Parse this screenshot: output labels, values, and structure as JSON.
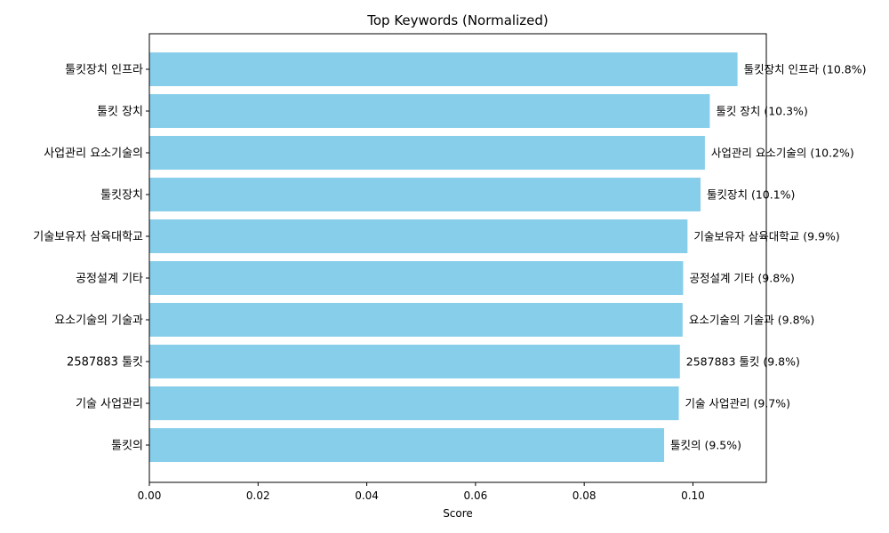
{
  "chart_data": {
    "type": "bar",
    "orientation": "horizontal",
    "title": "Top Keywords (Normalized)",
    "xlabel": "Score",
    "ylabel": "",
    "xlim": [
      0,
      0.1135
    ],
    "xticks": [
      0.0,
      0.02,
      0.04,
      0.06,
      0.08,
      0.1
    ],
    "xtick_labels": [
      "0.00",
      "0.02",
      "0.04",
      "0.06",
      "0.08",
      "0.10"
    ],
    "bar_color": "#87ceeb",
    "grid": false,
    "categories": [
      "툴킷장치 인프라",
      "툴킷 장치",
      "사업관리 요소기술의",
      "툴킷장치",
      "기술보유자 삼육대학교",
      "공정설계 기타",
      "요소기술의 기술과",
      "2587883 툴킷",
      "기술 사업관리",
      "툴킷의"
    ],
    "values": [
      0.1082,
      0.1031,
      0.1022,
      0.1014,
      0.099,
      0.0982,
      0.0981,
      0.0976,
      0.0974,
      0.0947
    ],
    "data_labels": [
      "툴킷장치 인프라 (10.8%)",
      "툴킷 장치 (10.3%)",
      "사업관리 요소기술의 (10.2%)",
      "툴킷장치 (10.1%)",
      "기술보유자 삼육대학교 (9.9%)",
      "공정설계 기타 (9.8%)",
      "요소기술의 기술과 (9.8%)",
      "2587883 툴킷 (9.8%)",
      "기술 사업관리 (9.7%)",
      "툴킷의 (9.5%)"
    ]
  }
}
